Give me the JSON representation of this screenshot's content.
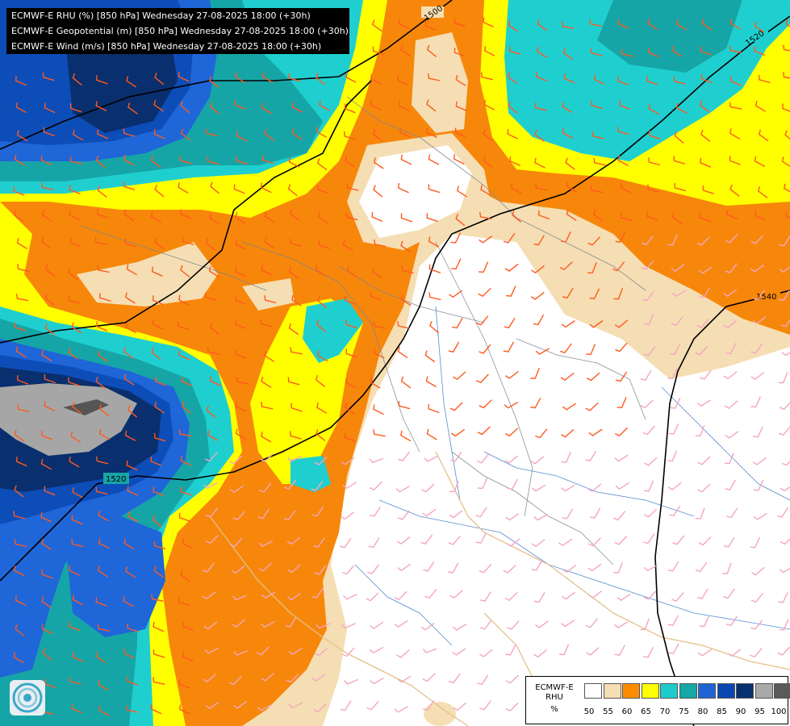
{
  "titles": [
    "ECMWF-E RHU (%) [850 hPa] Wednesday 27-08-2025 18:00 (+30h)",
    "ECMWF-E Geopotential (m) [850 hPa] Wednesday 27-08-2025 18:00 (+30h)",
    "ECMWF-E Wind (m/s) [850 hPa] Wednesday 27-08-2025 18:00 (+30h)"
  ],
  "contour_labels": {
    "a": "1500",
    "b": "1520",
    "c": "1540",
    "d": "1520"
  },
  "legend": {
    "line1": "ECMWF-E",
    "line2": "RHU",
    "line3": "%",
    "ticks": [
      "50",
      "55",
      "60",
      "65",
      "70",
      "75",
      "80",
      "85",
      "90",
      "95",
      "100"
    ],
    "colors": [
      "#ffffff",
      "#f5deb3",
      "#ff8c00",
      "#ffff00",
      "#1ecbcb",
      "#16a7a7",
      "#1e64d6",
      "#0b47b0",
      "#09306e",
      "#a9a9a9",
      "#5a5a5a"
    ]
  },
  "colors": {
    "white": "#ffffff",
    "wheat": "#f5deb3",
    "orange": "#f7870a",
    "yellow": "#ffff00",
    "cyan": "#1fcfd0",
    "teal": "#16a5a6",
    "blue": "#1f66d8",
    "blue_dark": "#0d4db8",
    "navy": "#092f6e",
    "gray": "#a6a6a6",
    "gray_dark": "#555555"
  },
  "logo_icon": "ecmwf-logo-icon"
}
